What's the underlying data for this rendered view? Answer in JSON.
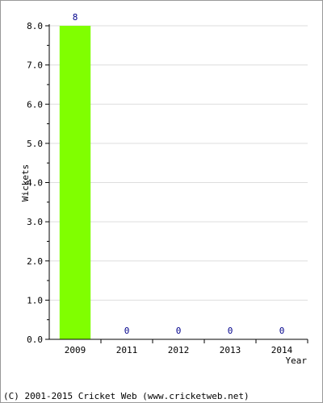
{
  "chart_data": {
    "type": "bar",
    "categories": [
      "2009",
      "2011",
      "2012",
      "2013",
      "2014"
    ],
    "values": [
      8,
      0,
      0,
      0,
      0
    ],
    "data_labels": [
      "8",
      "0",
      "0",
      "0",
      "0"
    ],
    "xlabel": "Year",
    "ylabel": "Wickets",
    "ylim": [
      0,
      8
    ],
    "yticks": [
      "0.0",
      "1.0",
      "2.0",
      "3.0",
      "4.0",
      "5.0",
      "6.0",
      "7.0",
      "8.0"
    ],
    "grid": true,
    "bar_color": "#80ff00",
    "label_color": "#00008b"
  },
  "footer": "(C) 2001-2015 Cricket Web (www.cricketweb.net)"
}
